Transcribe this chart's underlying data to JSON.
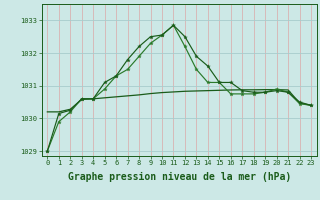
{
  "x": [
    0,
    1,
    2,
    3,
    4,
    5,
    6,
    7,
    8,
    9,
    10,
    11,
    12,
    13,
    14,
    15,
    16,
    17,
    18,
    19,
    20,
    21,
    22,
    23
  ],
  "line_peaked1": [
    1029.0,
    1029.9,
    1030.2,
    1030.6,
    1030.6,
    1030.9,
    1031.3,
    1031.5,
    1031.9,
    1032.3,
    1032.55,
    1032.85,
    1032.2,
    1031.5,
    1031.1,
    1031.1,
    1030.75,
    1030.75,
    1030.75,
    1030.8,
    1030.9,
    1030.8,
    1030.45,
    1030.4
  ],
  "line_peaked2": [
    1029.0,
    1030.15,
    1030.25,
    1030.6,
    1030.6,
    1031.1,
    1031.3,
    1031.8,
    1032.2,
    1032.5,
    1032.55,
    1032.85,
    1032.5,
    1031.9,
    1031.6,
    1031.1,
    1031.1,
    1030.85,
    1030.8,
    1030.8,
    1030.85,
    1030.8,
    1030.5,
    1030.4
  ],
  "line_flat": [
    1030.2,
    1030.2,
    1030.28,
    1030.58,
    1030.6,
    1030.63,
    1030.66,
    1030.69,
    1030.72,
    1030.76,
    1030.79,
    1030.81,
    1030.83,
    1030.84,
    1030.85,
    1030.86,
    1030.87,
    1030.875,
    1030.875,
    1030.88,
    1030.88,
    1030.87,
    1030.47,
    1030.4
  ],
  "ylim_min": 1028.85,
  "ylim_max": 1033.5,
  "yticks": [
    1029,
    1030,
    1031,
    1032,
    1033
  ],
  "xticks": [
    0,
    1,
    2,
    3,
    4,
    5,
    6,
    7,
    8,
    9,
    10,
    11,
    12,
    13,
    14,
    15,
    16,
    17,
    18,
    19,
    20,
    21,
    22,
    23
  ],
  "xlabel": "Graphe pression niveau de la mer (hPa)",
  "bg_color": "#cce8e6",
  "vgrid_color": "#dba8a8",
  "hgrid_color": "#a8cccc",
  "dark_line_color": "#1a5c1a",
  "mid_line_color": "#2a7a2a",
  "tick_fontsize": 5.0,
  "label_fontsize": 7.0
}
